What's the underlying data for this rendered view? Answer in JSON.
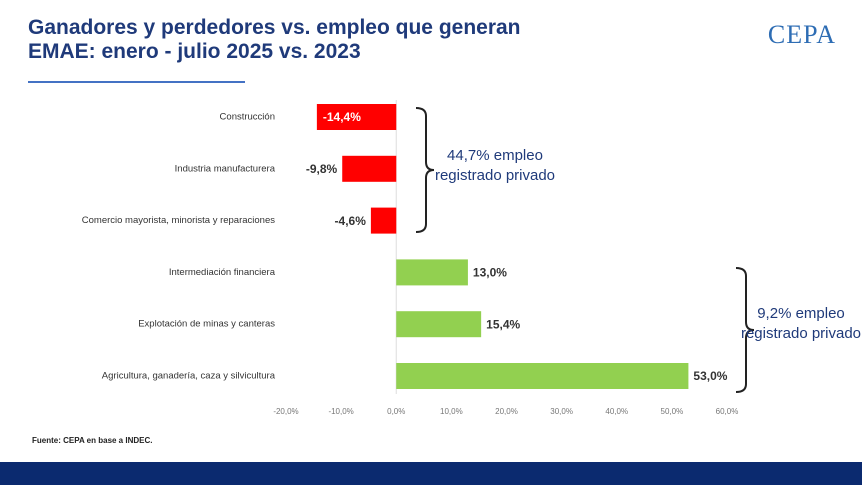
{
  "chart_data": {
    "type": "bar",
    "orientation": "horizontal",
    "title": "Ganadores y perdedores vs. empleo que generan EMAE: enero - julio 2025 vs. 2023",
    "logo": "CEPA",
    "categories": [
      "Construcción",
      "Industria manufacturera",
      "Comercio mayorista, minorista y reparaciones",
      "Intermediación financiera",
      "Explotación de minas y canteras",
      "Agricultura, ganadería, caza y silvicultura"
    ],
    "values": [
      -14.4,
      -9.8,
      -4.6,
      13.0,
      15.4,
      53.0
    ],
    "value_labels": [
      "-14,4%",
      "-9,8%",
      "-4,6%",
      "13,0%",
      "15,4%",
      "53,0%"
    ],
    "negative_color": "#ff0000",
    "positive_color": "#92d050",
    "xlim": [
      -20,
      60
    ],
    "xticks": [
      {
        "value": -20,
        "label": "-20,0%"
      },
      {
        "value": -10,
        "label": "-10,0%"
      },
      {
        "value": 0,
        "label": "0,0%"
      },
      {
        "value": 10,
        "label": "10,0%"
      },
      {
        "value": 20,
        "label": "20,0%"
      },
      {
        "value": 30,
        "label": "30,0%"
      },
      {
        "value": 40,
        "label": "40,0%"
      },
      {
        "value": 50,
        "label": "50,0%"
      },
      {
        "value": 60,
        "label": "60,0%"
      }
    ],
    "grid": false,
    "annotations": [
      "44,7% empleo registrado privado",
      "9,2% empleo registrado privado"
    ],
    "source": "Fuente: CEPA en base a INDEC."
  }
}
